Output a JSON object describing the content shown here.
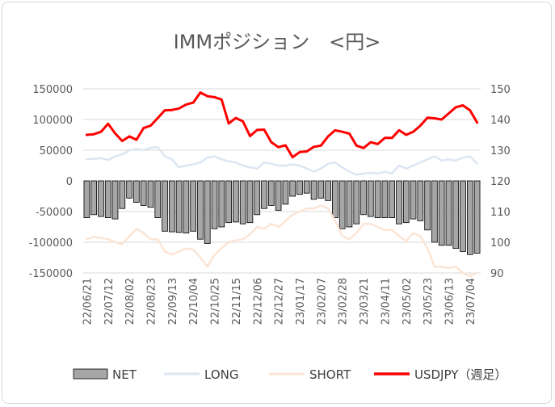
{
  "chart_data": {
    "type": "bar+line",
    "title": "IMMポジション　<円>",
    "y_left": {
      "min": -150000,
      "max": 150000,
      "ticks": [
        150000,
        100000,
        50000,
        0,
        -50000,
        -100000,
        -150000
      ],
      "tick_labels": [
        "150000",
        "100000",
        "50000",
        "0",
        "-50000",
        "-100000",
        "-150000"
      ]
    },
    "y_right": {
      "min": 90,
      "max": 150,
      "ticks": [
        150,
        140,
        130,
        120,
        110,
        100,
        90
      ],
      "tick_labels": [
        "150",
        "140",
        "130",
        "120",
        "110",
        "100",
        "90"
      ]
    },
    "x_tick_labels": [
      "22/06/21",
      "22/07/12",
      "22/08/02",
      "22/08/23",
      "22/09/13",
      "22/10/04",
      "22/10/25",
      "22/11/15",
      "22/12/06",
      "22/12/27",
      "23/01/17",
      "23/02/07",
      "23/02/28",
      "23/03/21",
      "23/04/11",
      "23/05/02",
      "23/05/23",
      "23/06/13",
      "23/07/04"
    ],
    "x_tick_every": 3,
    "series": [
      {
        "name": "NET",
        "type": "bar",
        "axis": "left",
        "color": "#a6a6a6",
        "border": "#000000",
        "values": [
          -60000,
          -55000,
          -58000,
          -60000,
          -62000,
          -45000,
          -28000,
          -35000,
          -40000,
          -43000,
          -60000,
          -82000,
          -83000,
          -84000,
          -85000,
          -82000,
          -95000,
          -102000,
          -78000,
          -75000,
          -68000,
          -67000,
          -70000,
          -68000,
          -55000,
          -45000,
          -40000,
          -48000,
          -38000,
          -25000,
          -22000,
          -20000,
          -30000,
          -28000,
          -32000,
          -60000,
          -78000,
          -75000,
          -70000,
          -55000,
          -58000,
          -60000,
          -60000,
          -60000,
          -70000,
          -68000,
          -62000,
          -65000,
          -80000,
          -100000,
          -105000,
          -105000,
          -110000,
          -115000,
          -120000,
          -118000
        ]
      },
      {
        "name": "LONG",
        "type": "line",
        "axis": "left",
        "color": "#dce6f2",
        "values": [
          35000,
          36000,
          37000,
          34000,
          40000,
          43000,
          50000,
          52000,
          50000,
          54000,
          55000,
          40000,
          35000,
          22000,
          25000,
          27000,
          30000,
          38000,
          40000,
          35000,
          32000,
          30000,
          25000,
          22000,
          20000,
          30000,
          28000,
          25000,
          25000,
          27000,
          25000,
          20000,
          15000,
          20000,
          28000,
          30000,
          22000,
          15000,
          10000,
          12000,
          13000,
          12000,
          15000,
          12000,
          25000,
          20000,
          25000,
          30000,
          35000,
          40000,
          33000,
          35000,
          33000,
          38000,
          40000,
          28000
        ]
      },
      {
        "name": "SHORT",
        "type": "line",
        "axis": "left",
        "color": "#fbe5d6",
        "values": [
          -95000,
          -91000,
          -93000,
          -95000,
          -100000,
          -103000,
          -90000,
          -78000,
          -85000,
          -95000,
          -95000,
          -115000,
          -120000,
          -115000,
          -110000,
          -112000,
          -125000,
          -140000,
          -120000,
          -110000,
          -100000,
          -97000,
          -95000,
          -87000,
          -75000,
          -78000,
          -70000,
          -75000,
          -65000,
          -55000,
          -50000,
          -45000,
          -45000,
          -40000,
          -45000,
          -65000,
          -90000,
          -95000,
          -85000,
          -70000,
          -70000,
          -75000,
          -80000,
          -80000,
          -90000,
          -98000,
          -85000,
          -90000,
          -110000,
          -140000,
          -140000,
          -142000,
          -140000,
          -150000,
          -155000,
          -150000
        ]
      },
      {
        "name": "USDJPY（週足）",
        "type": "line",
        "axis": "right",
        "color": "#ff0000",
        "values": [
          135.0,
          135.2,
          136.0,
          138.6,
          135.5,
          133.0,
          134.5,
          133.4,
          137.2,
          138.0,
          140.5,
          143.0,
          143.1,
          143.6,
          144.9,
          145.5,
          148.8,
          147.6,
          147.3,
          146.5,
          138.7,
          140.5,
          139.4,
          134.6,
          136.6,
          136.7,
          132.6,
          131.0,
          131.6,
          127.7,
          129.4,
          129.6,
          131.1,
          131.5,
          134.5,
          136.5,
          136.0,
          135.4,
          131.5,
          130.7,
          132.6,
          132.0,
          134.0,
          134.0,
          136.5,
          135.0,
          136.0,
          138.0,
          140.6,
          140.4,
          140.0,
          142.0,
          144.0,
          144.6,
          143.0,
          139.0
        ]
      }
    ],
    "legend": {
      "position": "bottom",
      "entries": [
        "NET",
        "LONG",
        "SHORT",
        "USDJPY（週足）"
      ]
    }
  }
}
